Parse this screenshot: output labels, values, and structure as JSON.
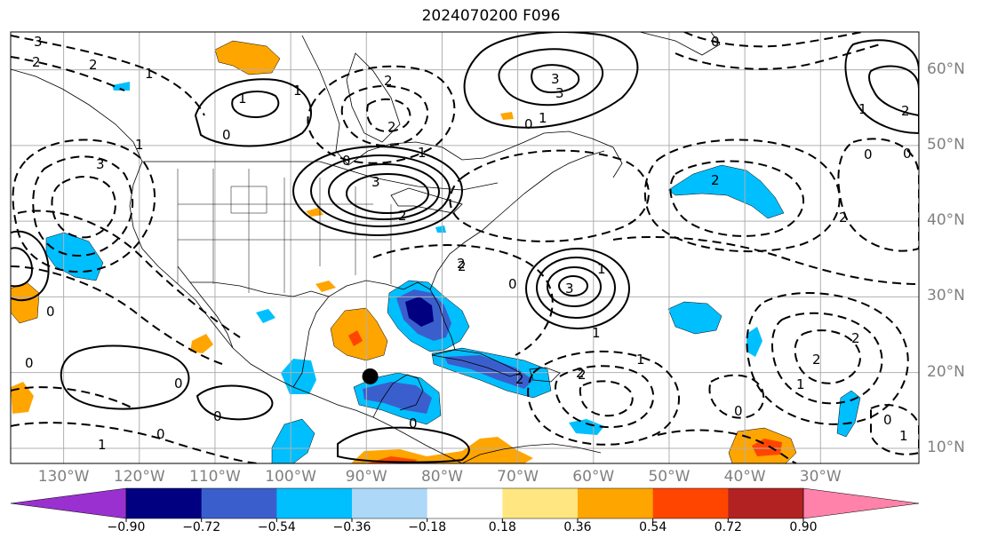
{
  "title": "2024070200 F096",
  "map": {
    "projection": "cylindrical",
    "extent": {
      "lon": [
        -137,
        -17
      ],
      "lat": [
        8,
        65
      ]
    },
    "land_color": "#ffffff",
    "border_color": "#000000",
    "grid_color": "#b0b0b0",
    "grid": true,
    "marker": {
      "name": "storm-position-marker",
      "lon": -89.5,
      "lat": 19.5,
      "color": "#000000"
    }
  },
  "lat_labels": [
    {
      "lat": 60,
      "text": "60°N"
    },
    {
      "lat": 50,
      "text": "50°N"
    },
    {
      "lat": 40,
      "text": "40°N"
    },
    {
      "lat": 30,
      "text": "30°N"
    },
    {
      "lat": 20,
      "text": "20°N"
    },
    {
      "lat": 10,
      "text": "10°N"
    }
  ],
  "lon_labels": [
    {
      "lon": -130,
      "text": "130°W"
    },
    {
      "lon": -120,
      "text": "120°W"
    },
    {
      "lon": -110,
      "text": "110°W"
    },
    {
      "lon": -100,
      "text": "100°W"
    },
    {
      "lon": -90,
      "text": "90°W"
    },
    {
      "lon": -80,
      "text": "80°W"
    },
    {
      "lon": -70,
      "text": "70°W"
    },
    {
      "lon": -60,
      "text": "60°W"
    },
    {
      "lon": -50,
      "text": "50°W"
    },
    {
      "lon": -40,
      "text": "40°W"
    },
    {
      "lon": -30,
      "text": "30°W"
    }
  ],
  "colorbar": {
    "boundaries": [
      "−0.90",
      "−0.72",
      "−0.54",
      "−0.36",
      "−0.18",
      "0.18",
      "0.36",
      "0.54",
      "0.72",
      "0.90"
    ],
    "colors": [
      "#9b30d0",
      "#000080",
      "#3a5fcd",
      "#00bfff",
      "#add8f7",
      "#ffffff",
      "#ffe680",
      "#ffa500",
      "#ff4500",
      "#b22222",
      "#ff82ab"
    ],
    "extend": "both"
  },
  "contour_labels": [
    "3",
    "2",
    "2",
    "1",
    "0",
    "1",
    "2",
    "3",
    "3",
    "1",
    "0",
    "1",
    "2",
    "0",
    "1",
    "1",
    "2",
    "2",
    "3",
    "2",
    "0",
    "2",
    "0",
    "3",
    "0",
    "2",
    "1",
    "1",
    "2",
    "3",
    "0",
    "1",
    "0",
    "0",
    "0",
    "2",
    "2",
    "0",
    "2",
    "0",
    "1",
    "2",
    "0",
    "2",
    "1",
    "0",
    "0",
    "1",
    "1"
  ],
  "shaded_regions": [
    {
      "name": "warm-anomaly-alaska-panhandle",
      "level": "0.36–0.54",
      "color": "#ffa500",
      "lon": -116,
      "lat": 61.5
    },
    {
      "name": "warm-anomaly-mexico-gulf",
      "level": "0.36–0.54",
      "color": "#ffa500",
      "lon": -91,
      "lat": 24.5
    },
    {
      "name": "hot-core-mexico-gulf",
      "level": "0.54–0.72",
      "color": "#ff4500",
      "lon": -92,
      "lat": 24
    },
    {
      "name": "cold-anomaly-southeast-us",
      "level": "−0.72 to −0.54",
      "color": "#3a5fcd",
      "lon": -83,
      "lat": 28
    },
    {
      "name": "cold-core-southeast-us",
      "level": "−0.90 to −0.72",
      "color": "#000080",
      "lon": -83.5,
      "lat": 29
    },
    {
      "name": "cold-anomaly-caribbean",
      "level": "−0.54 to −0.36",
      "color": "#00bfff",
      "lon": -73,
      "lat": 22
    },
    {
      "name": "cold-anomaly-central-america",
      "level": "−0.72 to −0.54",
      "color": "#3a5fcd",
      "lon": -84,
      "lat": 17
    },
    {
      "name": "warm-anomaly-tropical-atlantic",
      "level": "0.54–0.72",
      "color": "#ff4500",
      "lon": -37,
      "lat": 10.5
    }
  ]
}
